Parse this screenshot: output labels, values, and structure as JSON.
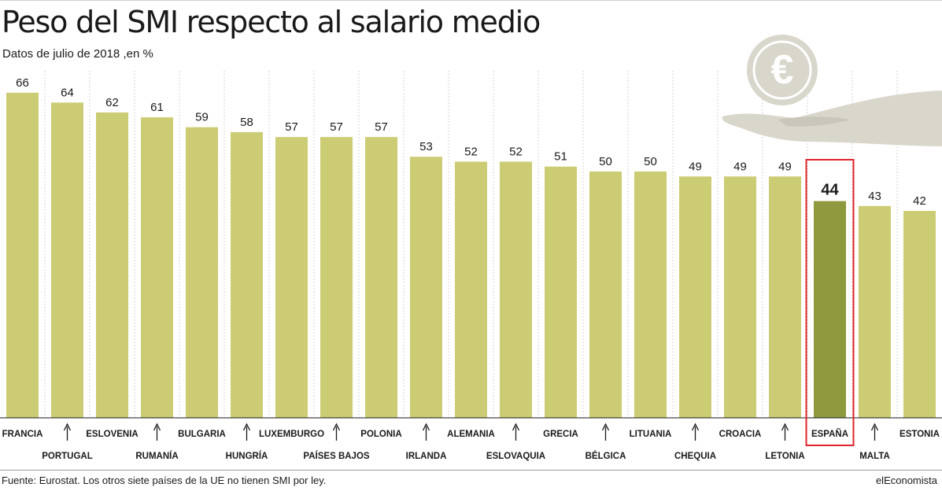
{
  "title": "Peso del SMI respecto al salario medio",
  "subtitle": "Datos de julio de 2018 ,en %",
  "source": "Fuente: Eurostat. Los otros siete países de la UE no tienen SMI por ley.",
  "brand": "elEconomista",
  "colors": {
    "bar": "#cccc74",
    "highlight_bar": "#8f9a3e",
    "highlight_box": "#e0242a",
    "illustration": "#d9d6cb",
    "gridline": "#d6d6d6"
  },
  "icons": [
    "euro-coin-icon",
    "open-hand-icon"
  ],
  "chart_data": {
    "type": "bar",
    "categories": [
      "FRANCIA",
      "PORTUGAL",
      "ESLOVENIA",
      "RUMANÍA",
      "BULGARIA",
      "HUNGRÍA",
      "LUXEMBURGO",
      "PAÍSES BAJOS",
      "POLONIA",
      "IRLANDA",
      "ALEMANIA",
      "ESLOVAQUIA",
      "GRECIA",
      "BÉLGICA",
      "LITUANIA",
      "CHEQUIA",
      "CROACIA",
      "LETONIA",
      "ESPAÑA",
      "MALTA",
      "ESTONIA"
    ],
    "values": [
      66,
      64,
      62,
      61,
      59,
      58,
      57,
      57,
      57,
      53,
      52,
      52,
      51,
      50,
      50,
      49,
      49,
      49,
      44,
      43,
      42
    ],
    "highlight": "ESPAÑA",
    "label_rows": [
      "top",
      "bottom",
      "top",
      "bottom",
      "top",
      "bottom",
      "top",
      "bottom",
      "top",
      "bottom",
      "top",
      "bottom",
      "top",
      "bottom",
      "top",
      "bottom",
      "top",
      "bottom",
      "top",
      "bottom",
      "top"
    ],
    "ylim": [
      0,
      68
    ],
    "grid": "vertical",
    "xlabel": "",
    "ylabel": ""
  }
}
